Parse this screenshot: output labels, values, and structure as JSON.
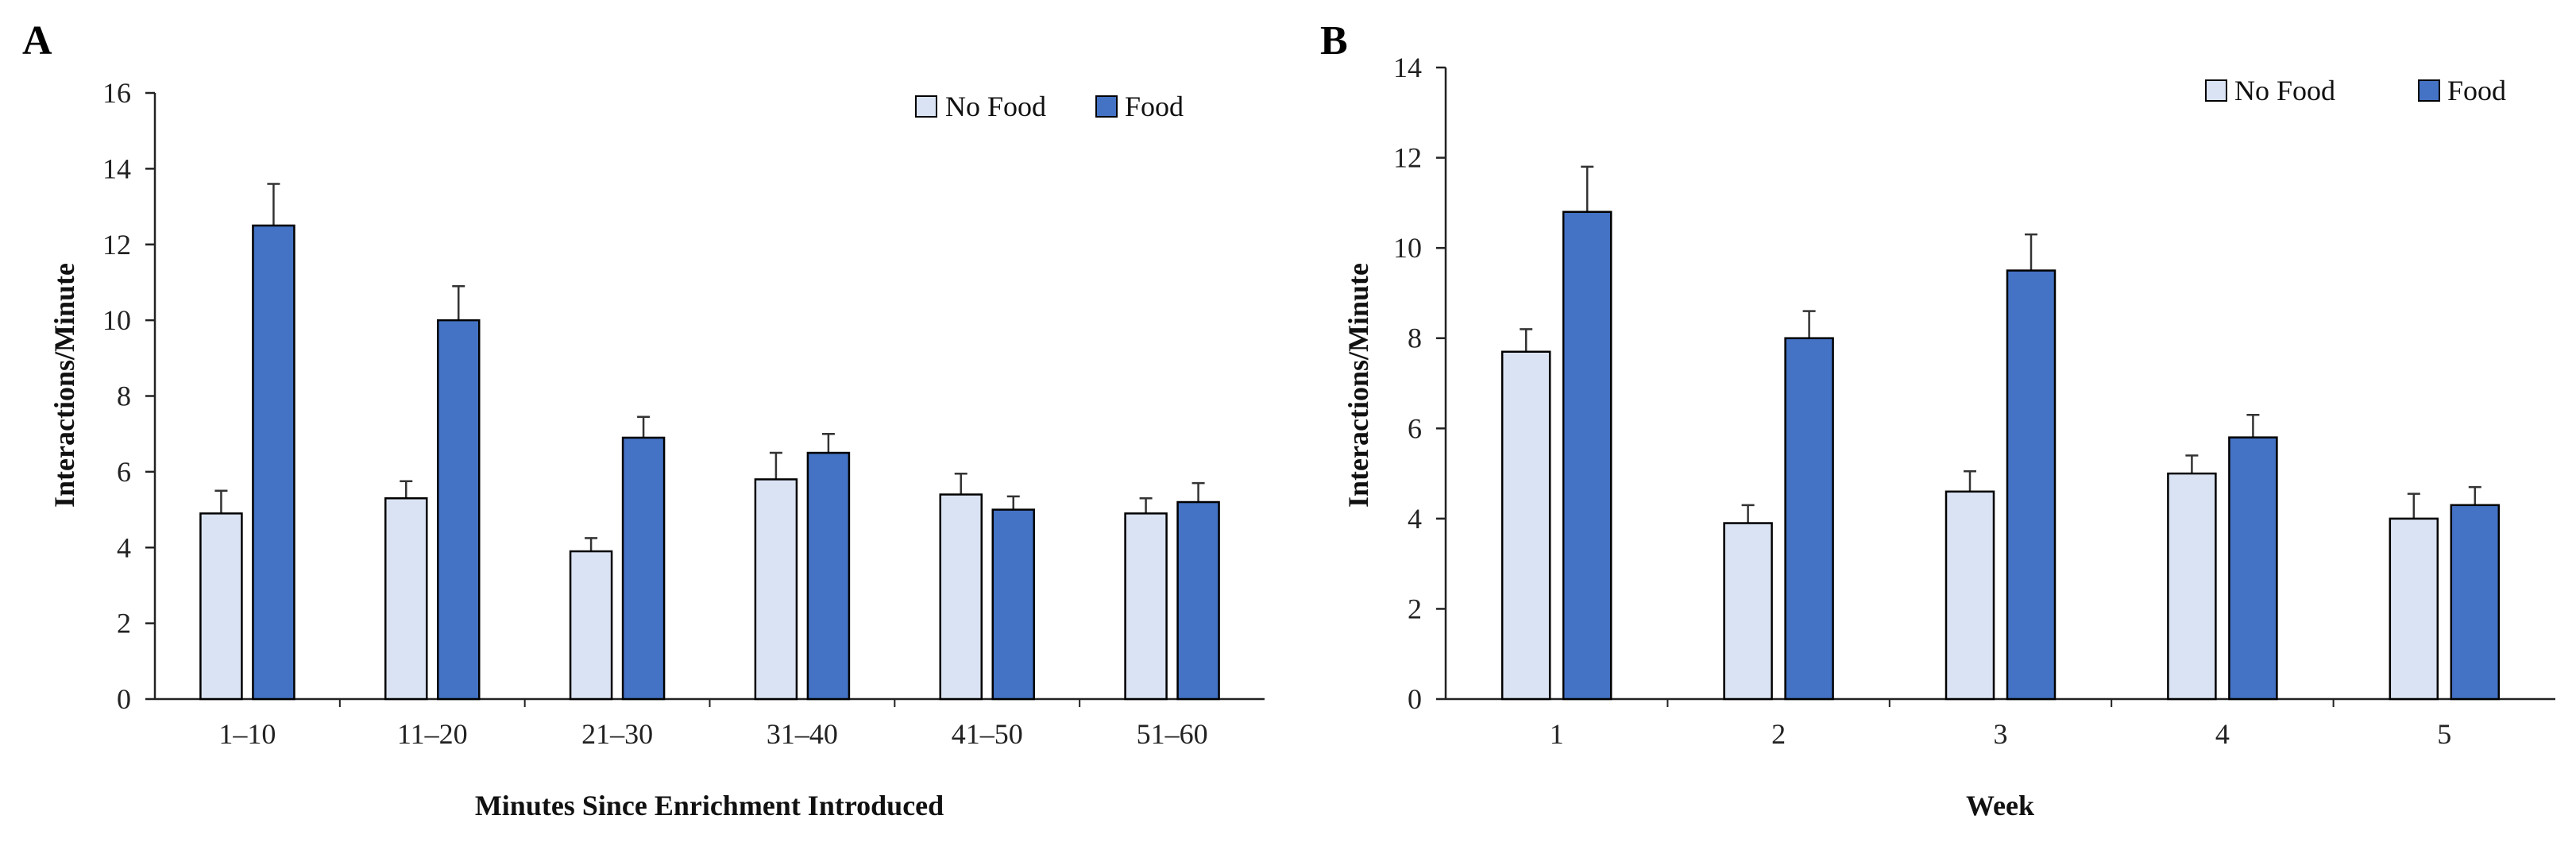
{
  "colors": {
    "no_food": "#dae3f3",
    "food": "#4472c4",
    "axis": "#222222",
    "outline": "#000000"
  },
  "chart_data": [
    {
      "panel": "A",
      "type": "bar",
      "title": "",
      "xlabel": "Minutes Since Enrichment Introduced",
      "ylabel": "Interactions/Minute",
      "ylim": [
        0,
        16
      ],
      "yticks": [
        0,
        2,
        4,
        6,
        8,
        10,
        12,
        14,
        16
      ],
      "categories": [
        "1–10",
        "11–20",
        "21–30",
        "31–40",
        "41–50",
        "51–60"
      ],
      "legend_position": "top-right",
      "series": [
        {
          "name": "No Food",
          "color": "#dae3f3",
          "values": [
            4.9,
            5.3,
            3.9,
            5.8,
            5.4,
            4.9
          ],
          "errors": [
            0.6,
            0.45,
            0.35,
            0.7,
            0.55,
            0.4
          ]
        },
        {
          "name": "Food",
          "color": "#4472c4",
          "values": [
            12.5,
            10.0,
            6.9,
            6.5,
            5.0,
            5.2
          ],
          "errors": [
            1.1,
            0.9,
            0.55,
            0.5,
            0.35,
            0.5
          ]
        }
      ]
    },
    {
      "panel": "B",
      "type": "bar",
      "title": "",
      "xlabel": "Week",
      "ylabel": "Interactions/Minute",
      "ylim": [
        0,
        14
      ],
      "yticks": [
        0,
        2,
        4,
        6,
        8,
        10,
        12,
        14
      ],
      "categories": [
        "1",
        "2",
        "3",
        "4",
        "5"
      ],
      "legend_position": "top-right",
      "series": [
        {
          "name": "No Food",
          "color": "#dae3f3",
          "values": [
            7.7,
            3.9,
            4.6,
            5.0,
            4.0
          ],
          "errors": [
            0.5,
            0.4,
            0.45,
            0.4,
            0.55
          ]
        },
        {
          "name": "Food",
          "color": "#4472c4",
          "values": [
            10.8,
            8.0,
            9.5,
            5.8,
            4.3
          ],
          "errors": [
            1.0,
            0.6,
            0.8,
            0.5,
            0.4
          ]
        }
      ]
    }
  ]
}
